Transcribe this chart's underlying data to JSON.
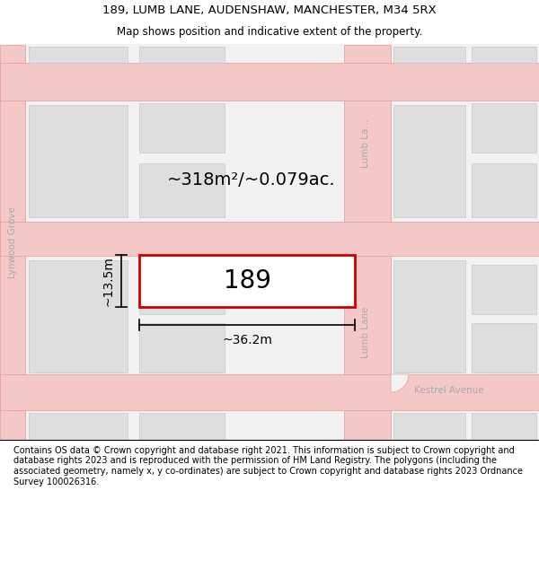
{
  "title_line1": "189, LUMB LANE, AUDENSHAW, MANCHESTER, M34 5RX",
  "title_line2": "Map shows position and indicative extent of the property.",
  "footer_text": "Contains OS data © Crown copyright and database right 2021. This information is subject to Crown copyright and database rights 2023 and is reproduced with the permission of HM Land Registry. The polygons (including the associated geometry, namely x, y co-ordinates) are subject to Crown copyright and database rights 2023 Ordnance Survey 100026316.",
  "bg_color": "#f2f2f2",
  "building_fill": "#dedede",
  "building_edge": "#c8c8c8",
  "road_fill": "#f5c8c8",
  "road_edge": "#e89898",
  "highlight_color": "#cc0000",
  "highlight_fill": "#ffffff",
  "area_label": "~318m²/~0.079ac.",
  "property_label": "189",
  "dim_width": "~36.2m",
  "dim_height": "~13.5m",
  "label_kestrel": "Kestrel Avenue",
  "label_lumb_bottom": "Lumb Lane",
  "label_lumb_top": "Lumb La...",
  "label_lynwood": "Lynwood Grove",
  "title_fontsize": 9.5,
  "subtitle_fontsize": 8.5,
  "footer_fontsize": 7.0,
  "map_label_color": "#aaaaaa",
  "map_label_fontsize": 7.5
}
